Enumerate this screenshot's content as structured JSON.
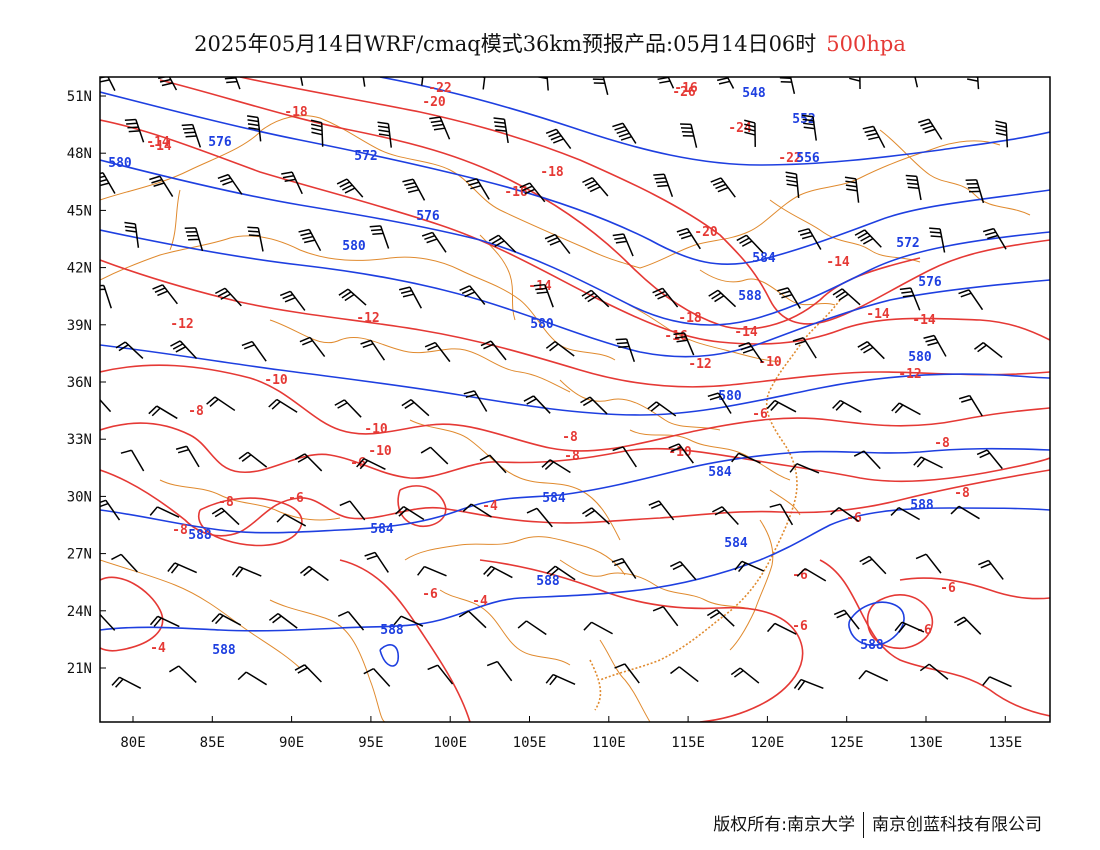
{
  "title": {
    "main": "2025年05月14日WRF/cmaq模式36km预报产品:05月14日06时",
    "level": "500hpa",
    "level_color": "#e53935"
  },
  "credit": {
    "left": "版权所有:南京大学",
    "right": "南京创蓝科技有限公司"
  },
  "map": {
    "lat_labels": [
      "51N",
      "48N",
      "45N",
      "42N",
      "39N",
      "36N",
      "33N",
      "30N",
      "27N",
      "24N",
      "21N"
    ],
    "lon_labels": [
      "80E",
      "85E",
      "90E",
      "95E",
      "100E",
      "105E",
      "110E",
      "115E",
      "120E",
      "125E",
      "130E",
      "135E"
    ],
    "colors": {
      "geopotential": "#1e3fe0",
      "temperature": "#e53935",
      "boundary": "#e08a2e",
      "wind": "#000000"
    },
    "geopotential_labels": [
      "548",
      "552",
      "556",
      "572",
      "576",
      "576",
      "580",
      "580",
      "580",
      "584",
      "572",
      "576",
      "580",
      "588",
      "580",
      "584",
      "584",
      "584",
      "588",
      "584",
      "588",
      "588",
      "588",
      "588",
      "588"
    ],
    "temperature_labels": [
      "-22",
      "-20",
      "-18",
      "-14",
      "-14",
      "-16",
      "-18",
      "-16",
      "-26",
      "-24",
      "-22",
      "-20",
      "-14",
      "-12",
      "-12",
      "-10",
      "-14",
      "-14",
      "-16",
      "-18",
      "-14",
      "-10",
      "-12",
      "-14",
      "-12",
      "-8",
      "-10",
      "-10",
      "-8",
      "-6",
      "-8",
      "-6",
      "-8",
      "-10",
      "-8",
      "-6",
      "-4",
      "-8",
      "-6",
      "-8",
      "-6",
      "-4",
      "-4",
      "-6",
      "-6",
      "-6",
      "-6"
    ]
  }
}
